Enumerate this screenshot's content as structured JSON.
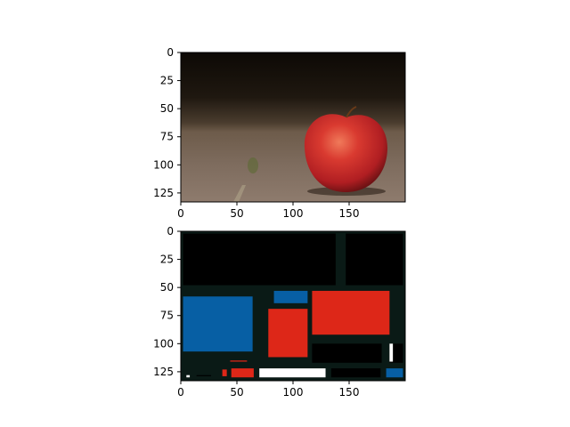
{
  "chart_data": [
    {
      "type": "image",
      "subject": "red apple on a road surface",
      "x_ticks": [
        0,
        50,
        100,
        150
      ],
      "y_ticks": [
        0,
        25,
        50,
        75,
        100,
        125
      ],
      "xlim": [
        0,
        200
      ],
      "ylim": [
        133,
        0
      ],
      "colors": {
        "top": "#0d0905",
        "middle": "#5a4a3a",
        "ground": "#8a7668",
        "apple": "#c8242a",
        "stem": "#6a3a18"
      }
    },
    {
      "type": "heatmap",
      "x_ticks": [
        0,
        50,
        100,
        150
      ],
      "y_ticks": [
        0,
        25,
        50,
        75,
        100,
        125
      ],
      "xlim": [
        0,
        200
      ],
      "ylim": [
        133,
        0
      ],
      "background_color": "#0a1a16",
      "regions": [
        {
          "color": "#000000",
          "x": [
            2,
            138
          ],
          "y": [
            2,
            48
          ]
        },
        {
          "color": "#000000",
          "x": [
            147,
            198
          ],
          "y": [
            2,
            48
          ]
        },
        {
          "color": "#075fa4",
          "x": [
            2,
            64
          ],
          "y": [
            58,
            107
          ]
        },
        {
          "color": "#075fa4",
          "x": [
            83,
            113
          ],
          "y": [
            53,
            64
          ]
        },
        {
          "color": "#dd2718",
          "x": [
            78,
            113
          ],
          "y": [
            69,
            112
          ]
        },
        {
          "color": "#dd2718",
          "x": [
            117,
            186
          ],
          "y": [
            53,
            92
          ]
        },
        {
          "color": "#000000",
          "x": [
            117,
            179
          ],
          "y": [
            100,
            117
          ]
        },
        {
          "color": "#000000",
          "x": [
            186,
            198
          ],
          "y": [
            100,
            117
          ]
        },
        {
          "color": "#ffffff",
          "x": [
            186,
            189
          ],
          "y": [
            100,
            116
          ]
        },
        {
          "color": "#dd2718",
          "x": [
            44,
            59
          ],
          "y": [
            115,
            116
          ]
        },
        {
          "color": "#ffffff",
          "x": [
            5,
            8
          ],
          "y": [
            128,
            130
          ]
        },
        {
          "color": "#000000",
          "x": [
            14,
            27
          ],
          "y": [
            128,
            129
          ]
        },
        {
          "color": "#dd2718",
          "x": [
            37,
            41
          ],
          "y": [
            123,
            129
          ]
        },
        {
          "color": "#dd2718",
          "x": [
            45,
            65
          ],
          "y": [
            122,
            130
          ]
        },
        {
          "color": "#ffffff",
          "x": [
            70,
            129
          ],
          "y": [
            122,
            130
          ]
        },
        {
          "color": "#000000",
          "x": [
            134,
            178
          ],
          "y": [
            122,
            130
          ]
        },
        {
          "color": "#075fa4",
          "x": [
            183,
            198
          ],
          "y": [
            122,
            130
          ]
        }
      ]
    }
  ]
}
